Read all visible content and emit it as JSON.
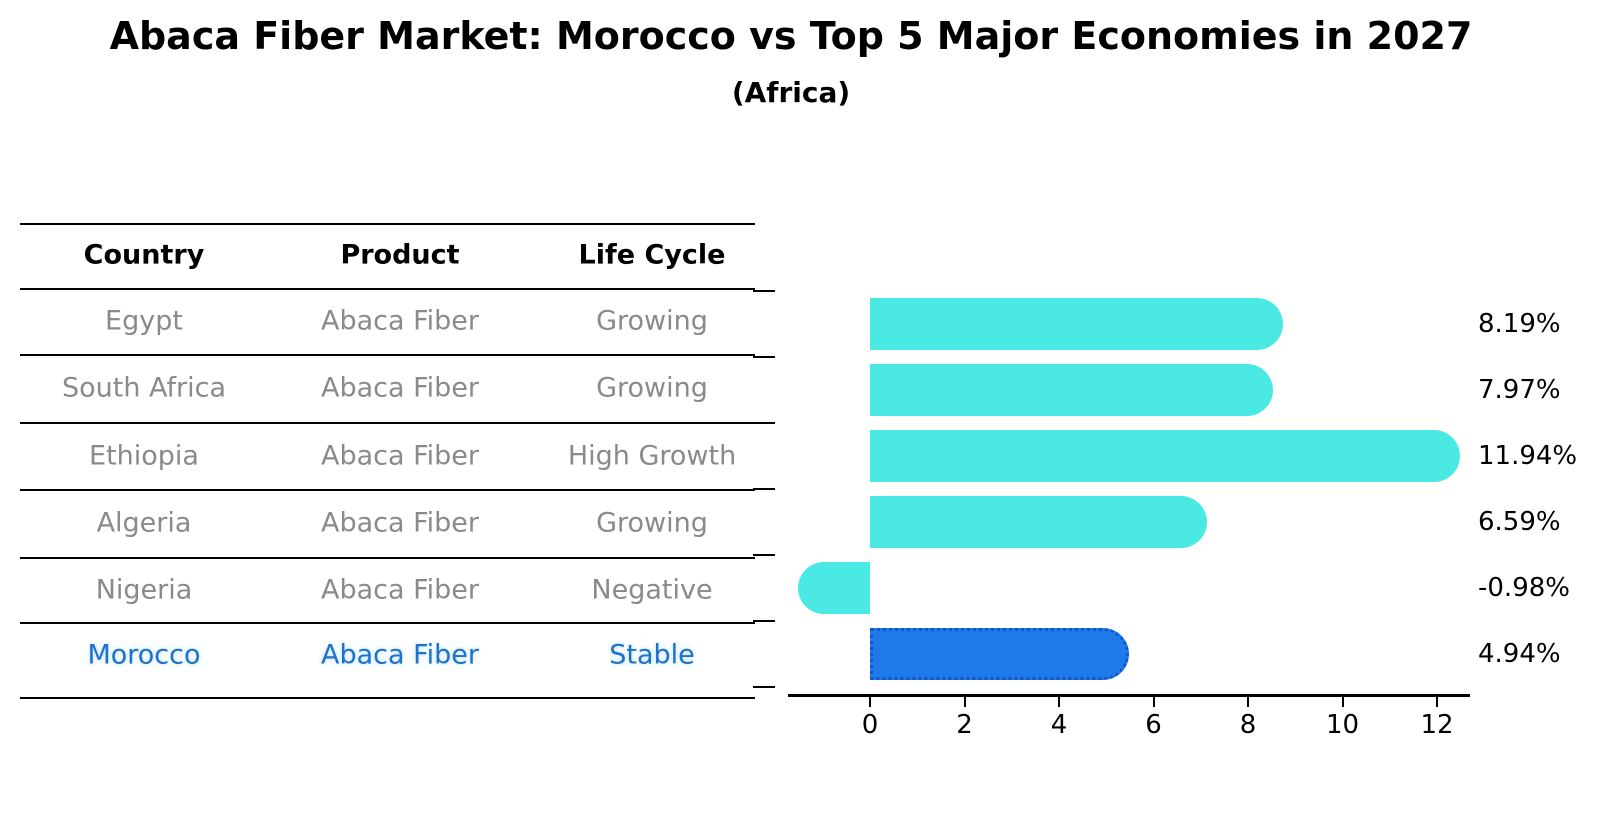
{
  "title": "Abaca Fiber Market: Morocco vs Top 5 Major Economies in 2027",
  "subtitle": "(Africa)",
  "table": {
    "columns": [
      "Country",
      "Product",
      "Life Cycle"
    ],
    "rows": [
      {
        "country": "Egypt",
        "product": "Abaca Fiber",
        "life_cycle": "Growing",
        "highlight": false
      },
      {
        "country": "South Africa",
        "product": "Abaca Fiber",
        "life_cycle": "Growing",
        "highlight": false
      },
      {
        "country": "Ethiopia",
        "product": "Abaca Fiber",
        "life_cycle": "High Growth",
        "highlight": false
      },
      {
        "country": "Algeria",
        "product": "Abaca Fiber",
        "life_cycle": "Growing",
        "highlight": false
      },
      {
        "country": "Nigeria",
        "product": "Abaca Fiber",
        "life_cycle": "Negative",
        "highlight": false
      },
      {
        "country": "Morocco",
        "product": "Abaca Fiber",
        "life_cycle": "Stable",
        "highlight": true
      }
    ]
  },
  "chart_data": {
    "type": "bar",
    "orientation": "horizontal",
    "title": "Abaca Fiber Market: Morocco vs Top 5 Major Economies in 2027",
    "subtitle": "(Africa)",
    "categories": [
      "Egypt",
      "South Africa",
      "Ethiopia",
      "Algeria",
      "Nigeria",
      "Morocco"
    ],
    "values": [
      8.19,
      7.97,
      11.94,
      6.59,
      -0.98,
      4.94
    ],
    "value_labels": [
      "8.19%",
      "7.97%",
      "11.94%",
      "6.59%",
      "-0.98%",
      "4.94%"
    ],
    "highlight_index": 5,
    "xticks": [
      0,
      2,
      4,
      6,
      8,
      10,
      12
    ],
    "xlim": [
      -1.7,
      12.7
    ],
    "grid": false,
    "legend": false,
    "colors": {
      "bar_default": "#4AE9E4",
      "bar_highlight": "#1E7AEB",
      "bar_highlight_border": "#1257C8",
      "highlight_text": "#1F72C8",
      "table_text": "#8a8a8a",
      "axis": "#000000"
    }
  }
}
